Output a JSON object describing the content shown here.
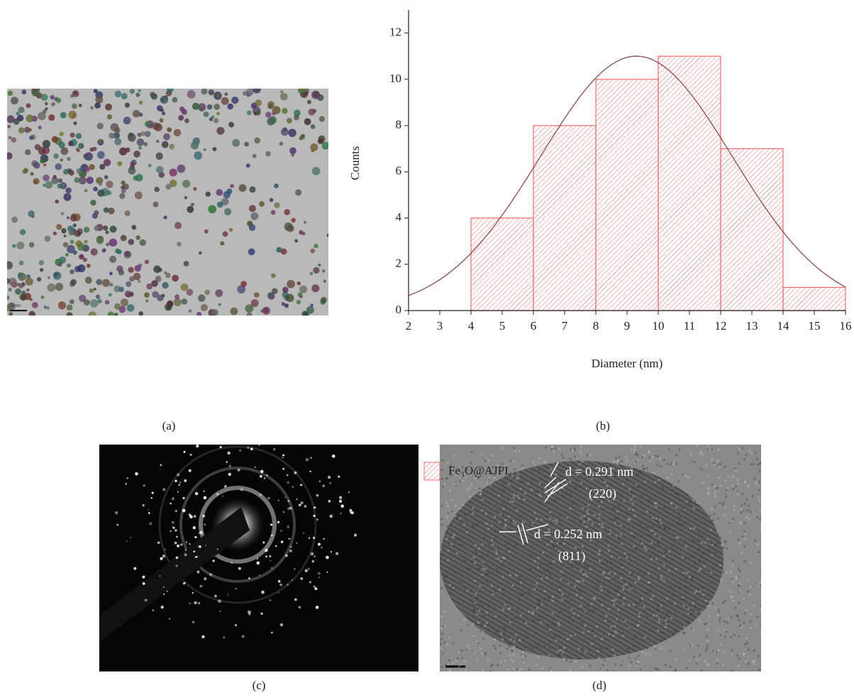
{
  "chart_data": {
    "type": "histogram",
    "xlabel": "Diameter (nm)",
    "ylabel": "Counts",
    "bins": [
      4,
      6,
      8,
      10,
      12,
      14,
      16
    ],
    "series": [
      {
        "name": "Fe₃O@AJPL",
        "color": "#f26b6b",
        "values": [
          4,
          8,
          10,
          11,
          7,
          1
        ]
      }
    ],
    "xlim": [
      2,
      16
    ],
    "ylim": [
      0,
      13
    ],
    "xticks": [
      2,
      3,
      4,
      5,
      6,
      7,
      8,
      9,
      10,
      11,
      12,
      13,
      14,
      15,
      16
    ],
    "yticks": [
      0,
      2,
      4,
      6,
      8,
      10,
      12
    ],
    "fit": {
      "center": 9.3,
      "sigma": 3.07,
      "amplitude": 11,
      "color": "#8c4b4b"
    }
  },
  "panels": {
    "a": {
      "label": "(a)",
      "scale_bar": "50 nm"
    },
    "b": {
      "label": "(b)"
    },
    "c": {
      "label": "(c)"
    },
    "d": {
      "label": "(d)",
      "annotations": [
        "d = 0.291 nm",
        "(220)",
        "d = 0.252 nm",
        "(811)"
      ]
    }
  }
}
